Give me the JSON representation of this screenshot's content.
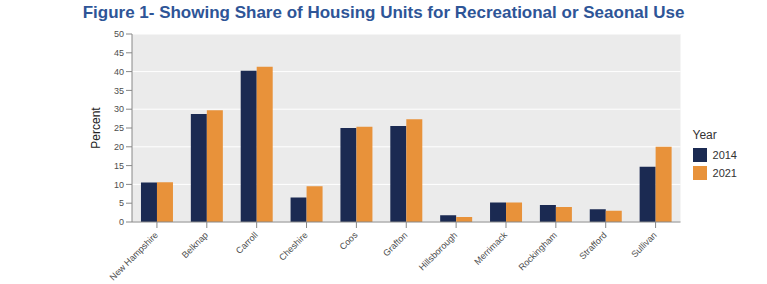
{
  "chart_data": {
    "type": "bar",
    "title": "Figure 1- Showing Share of Housing Units for Recreational or Seaonal Use",
    "y_label": "Percent",
    "legend_title": "Year",
    "categories": [
      "New Hampshire",
      "Belknap",
      "Carroll",
      "Cheshire",
      "Coos",
      "Grafton",
      "Hillsborough",
      "Merrimack",
      "Rockingham",
      "Strafford",
      "Sullivan"
    ],
    "series": [
      {
        "name": "2014",
        "color": "#1b2a52",
        "values": [
          10.5,
          28.7,
          40.2,
          6.5,
          25.0,
          25.5,
          1.8,
          5.2,
          4.5,
          3.4,
          14.7
        ]
      },
      {
        "name": "2021",
        "color": "#e8923a",
        "values": [
          10.6,
          29.7,
          41.3,
          9.5,
          25.3,
          27.3,
          1.3,
          5.2,
          4.0,
          3.0,
          20.0
        ]
      }
    ],
    "ylim": [
      0,
      50
    ],
    "yticks": [
      0,
      5,
      10,
      15,
      20,
      25,
      30,
      35,
      40,
      45,
      50
    ],
    "grid": true,
    "legend": "right"
  }
}
